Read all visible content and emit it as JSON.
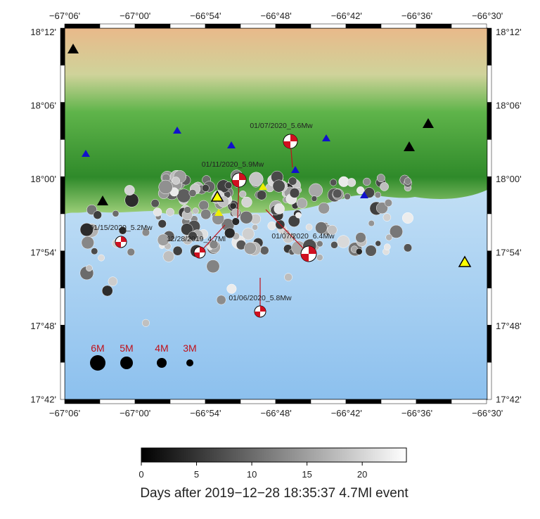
{
  "map": {
    "lon_labels": [
      "−67°06'",
      "−67°00'",
      "−66°54'",
      "−66°48'",
      "−66°42'",
      "−66°36'",
      "−66°30'"
    ],
    "lat_labels": [
      "18°12'",
      "18°06'",
      "18°00'",
      "17°54'",
      "17°48'",
      "17°42'"
    ],
    "events": [
      "01/07/2020_5.6Mw",
      "01/11/2020_5.9Mw",
      "01/15/2020_5.2Mw",
      "12/28/2019_4.7Ml",
      "01/07/2020_6.4Mw",
      "01/06/2020_5.8Mw"
    ],
    "magnitude_legend": [
      "6M",
      "5M",
      "4M",
      "3M"
    ],
    "colorbar": {
      "range": [
        0,
        24
      ],
      "ticks": [
        0,
        5,
        10,
        15,
        20
      ],
      "label": "Days after 2019−12−28 18:35:37 4.7Ml event"
    }
  }
}
